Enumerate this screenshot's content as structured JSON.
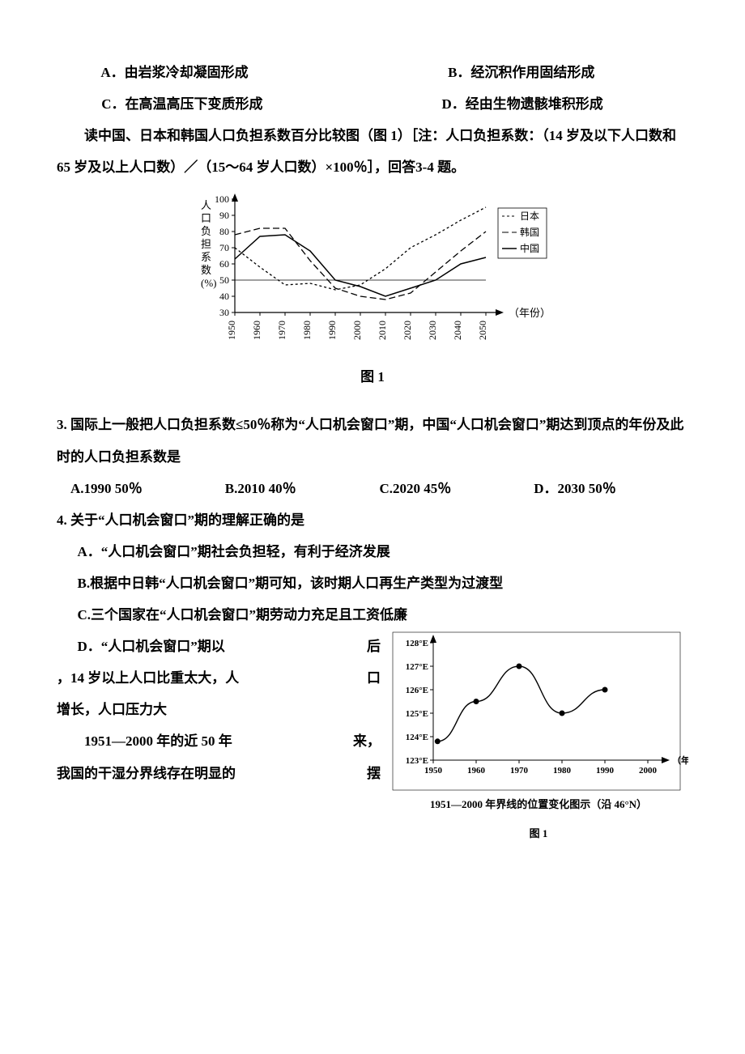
{
  "q2": {
    "optA": "A．由岩浆冷却凝固形成",
    "optB": "B．经沉积作用固结形成",
    "optC": "C．在高温高压下变质形成",
    "optD": "D．经由生物遗骸堆积形成"
  },
  "intro34": "读中国、日本和韩国人口负担系数百分比较图（图 1）［注：人口负担系数：（14 岁及以下人口数和 65 岁及以上人口数）／（15～64 岁人口数）×100％］，回答3-4 题。",
  "fig1": {
    "ylabel_chars": [
      "人",
      "口",
      "负",
      "担",
      "系",
      "数",
      "(%)"
    ],
    "y_ticks": [
      100,
      90,
      80,
      70,
      60,
      50,
      40,
      30
    ],
    "x_ticks": [
      "1950",
      "1960",
      "1970",
      "1980",
      "1990",
      "2000",
      "2010",
      "2020",
      "2030",
      "2040",
      "2050"
    ],
    "x_axis_label": "（年份）",
    "series_japan": {
      "label": "日本",
      "style": "dashed-short",
      "color": "#000000",
      "points": [
        [
          1950,
          70
        ],
        [
          1960,
          58
        ],
        [
          1970,
          47
        ],
        [
          1980,
          48
        ],
        [
          1990,
          44
        ],
        [
          2000,
          47
        ],
        [
          2010,
          57
        ],
        [
          2020,
          70
        ],
        [
          2030,
          78
        ],
        [
          2040,
          87
        ],
        [
          2050,
          95
        ]
      ]
    },
    "series_korea": {
      "label": "韩国",
      "style": "dashed-long",
      "color": "#000000",
      "points": [
        [
          1950,
          78
        ],
        [
          1960,
          82
        ],
        [
          1970,
          82
        ],
        [
          1980,
          62
        ],
        [
          1990,
          45
        ],
        [
          2000,
          40
        ],
        [
          2010,
          38
        ],
        [
          2020,
          42
        ],
        [
          2030,
          55
        ],
        [
          2040,
          68
        ],
        [
          2050,
          80
        ]
      ]
    },
    "series_china": {
      "label": "中国",
      "style": "solid",
      "color": "#000000",
      "points": [
        [
          1950,
          63
        ],
        [
          1960,
          77
        ],
        [
          1970,
          78
        ],
        [
          1980,
          68
        ],
        [
          1990,
          50
        ],
        [
          2000,
          46
        ],
        [
          2010,
          40
        ],
        [
          2020,
          45
        ],
        [
          2030,
          50
        ],
        [
          2040,
          60
        ],
        [
          2050,
          64
        ]
      ]
    },
    "threshold_line": 50,
    "caption": "图 1"
  },
  "q3": {
    "stem": "3.  国际上一般把人口负担系数≤50％称为“人口机会窗口”期，中国“人口机会窗口”期达到顶点的年份及此时的人口负担系数是",
    "optA": "A.1990   50％",
    "optB": "B.2010   40％",
    "optC": "C.2020   45％",
    "optD": "D．2030   50％"
  },
  "q4": {
    "stem": "4.  关于“人口机会窗口”期的理解正确的是",
    "optA": "A．“人口机会窗口”期社会负担轻，有利于经济发展",
    "optB": "B.根据中日韩“人口机会窗口”期可知，该时期人口再生产类型为过渡型",
    "optC": "C.三个国家在“人口机会窗口”期劳动力充足且工资低廉",
    "optD_part1": "D．“人口机会窗口”期以",
    "optD_part1b": "后",
    "optD_part2a": "，14 岁以上人口比重太大，人",
    "optD_part2b": "口",
    "optD_part3": "增长，人口压力大"
  },
  "intro56_a": "1951—2000 年的近 50 年",
  "intro56_a2": "来，",
  "intro56_b": "我国的干湿分界线存在明显的",
  "intro56_b2": "摆",
  "fig2": {
    "y_ticks": [
      "128°E",
      "127°E",
      "126°E",
      "125°E",
      "124°E",
      "123°E"
    ],
    "x_ticks": [
      "1950",
      "1960",
      "1970",
      "1980",
      "1990",
      "2000"
    ],
    "x_axis_label": "（年）",
    "points": [
      [
        1951,
        123.8
      ],
      [
        1960,
        125.5
      ],
      [
        1970,
        127.0
      ],
      [
        1980,
        125.0
      ],
      [
        1990,
        126.0
      ]
    ],
    "caption_line": "1951—2000 年界线的位置变化图示（沿 46°N）",
    "fig_label": "图 1"
  }
}
